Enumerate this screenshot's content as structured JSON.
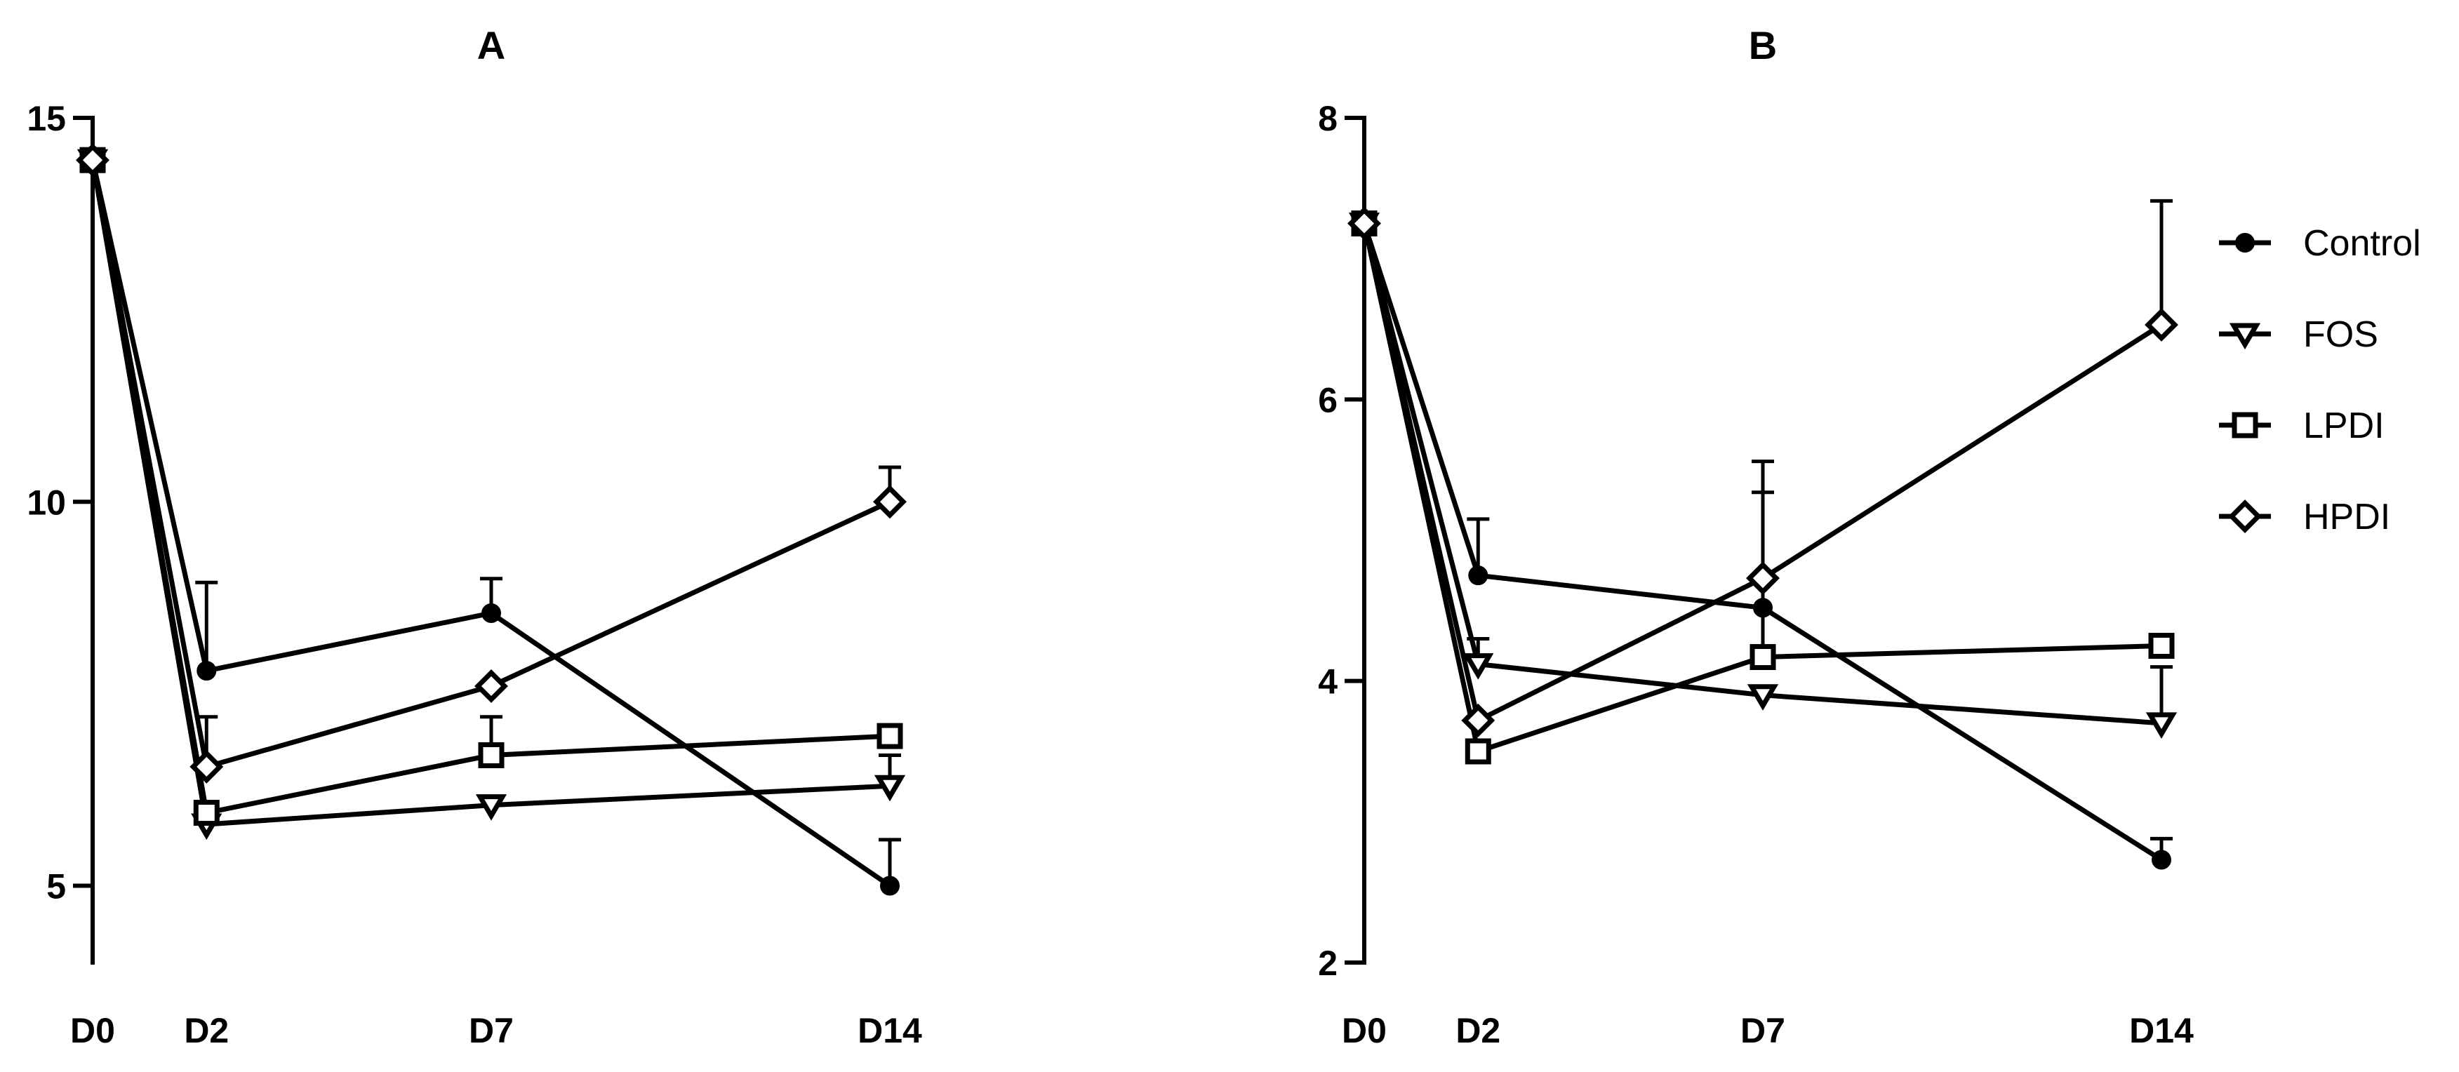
{
  "chart_data": [
    {
      "type": "line",
      "title": "A",
      "xlabel": "",
      "ylabel": "",
      "categories": [
        "D0",
        "D2",
        "D7",
        "D14"
      ],
      "x": [
        0,
        2,
        7,
        14
      ],
      "ylim": [
        4,
        15
      ],
      "yticks": [
        5,
        10,
        15
      ],
      "series": [
        {
          "name": "Control",
          "marker": "circle",
          "values": [
            14.45,
            7.8,
            8.55,
            5.0
          ],
          "errors": [
            0,
            1.15,
            0.45,
            0.6
          ]
        },
        {
          "name": "FOS",
          "marker": "triangle-down",
          "values": [
            14.45,
            5.8,
            6.05,
            6.3
          ],
          "errors": [
            0,
            0,
            0,
            0.4
          ]
        },
        {
          "name": "LPDI",
          "marker": "square",
          "values": [
            14.45,
            5.95,
            6.7,
            6.95
          ],
          "errors": [
            0,
            0,
            0.5,
            0
          ]
        },
        {
          "name": "HPDI",
          "marker": "diamond",
          "values": [
            14.45,
            6.55,
            7.6,
            10.0
          ],
          "errors": [
            0,
            0.65,
            0,
            0.45
          ]
        }
      ]
    },
    {
      "type": "line",
      "title": "B",
      "xlabel": "",
      "ylabel": "",
      "categories": [
        "D0",
        "D2",
        "D7",
        "D14"
      ],
      "x": [
        0,
        2,
        7,
        14
      ],
      "ylim": [
        2,
        8
      ],
      "yticks": [
        2,
        4,
        6,
        8
      ],
      "legend": "right",
      "series": [
        {
          "name": "Control",
          "marker": "circle",
          "values": [
            7.25,
            4.75,
            4.52,
            2.73
          ],
          "errors": [
            0,
            0.4,
            0,
            0.15
          ]
        },
        {
          "name": "FOS",
          "marker": "triangle-down",
          "values": [
            7.25,
            4.12,
            3.9,
            3.7
          ],
          "errors": [
            0,
            0.18,
            0,
            0.4
          ]
        },
        {
          "name": "LPDI",
          "marker": "square",
          "values": [
            7.25,
            3.5,
            4.17,
            4.25
          ],
          "errors": [
            0,
            0,
            1.17,
            0
          ]
        },
        {
          "name": "HPDI",
          "marker": "diamond",
          "values": [
            7.25,
            3.72,
            4.73,
            6.53
          ],
          "errors": [
            0,
            0,
            0.83,
            0.88
          ]
        }
      ]
    }
  ]
}
